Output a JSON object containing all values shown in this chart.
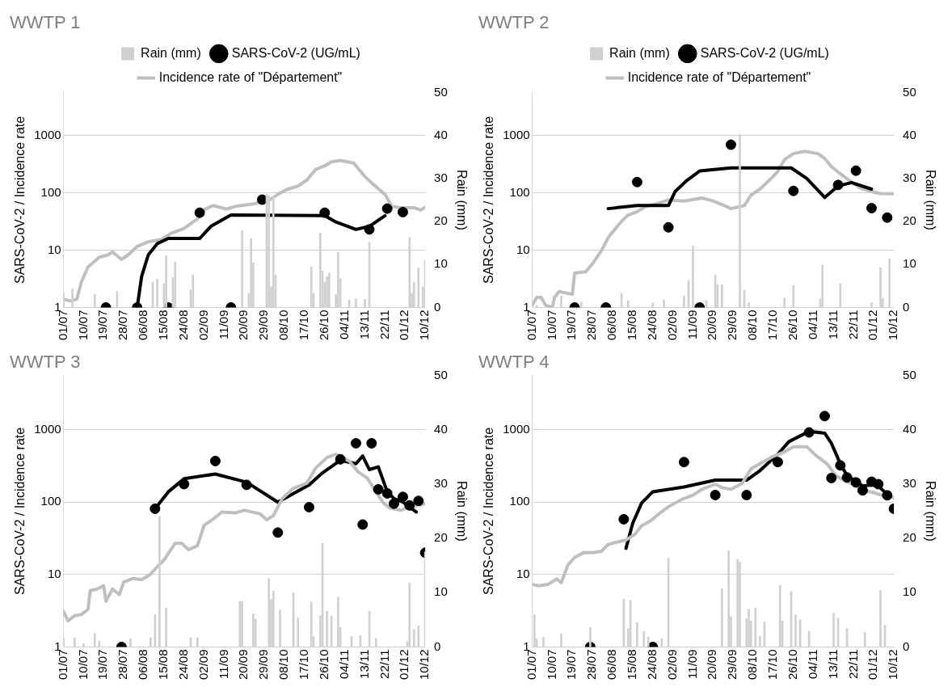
{
  "chart_data": [
    {
      "type": "line",
      "title": "WWTP 1",
      "ylabel": "SARS-CoV-2 / Incidence rate",
      "y2label": "Rain (mm)",
      "log": "y",
      "grid": "y",
      "legend": "top",
      "xlim": [
        "--07-01",
        "--12-10"
      ],
      "xticks": [
        {
          "value": "--07-01",
          "label": "01/07"
        },
        {
          "value": "--07-10",
          "label": "10/07"
        },
        {
          "value": "--07-19",
          "label": "19/07"
        },
        {
          "value": "--07-28",
          "label": "28/07"
        },
        {
          "value": "--08-06",
          "label": "06/08"
        },
        {
          "value": "--08-15",
          "label": "15/08"
        },
        {
          "value": "--08-24",
          "label": "24/08"
        },
        {
          "value": "--09-02",
          "label": "02/09"
        },
        {
          "value": "--09-11",
          "label": "11/09"
        },
        {
          "value": "--09-20",
          "label": "20/09"
        },
        {
          "value": "--09-29",
          "label": "29/09"
        },
        {
          "value": "--10-08",
          "label": "08/10"
        },
        {
          "value": "--10-17",
          "label": "17/10"
        },
        {
          "value": "--10-26",
          "label": "26/10"
        },
        {
          "value": "--11-04",
          "label": "04/11"
        },
        {
          "value": "--11-13",
          "label": "13/11"
        },
        {
          "value": "--11-22",
          "label": "22/11"
        },
        {
          "value": "--12-01",
          "label": "01/12"
        },
        {
          "value": "--12-10",
          "label": "10/12"
        }
      ],
      "ylim": [
        1,
        5623
      ],
      "yticks": [
        1,
        10,
        100,
        1000
      ],
      "y2lim": [
        0,
        50
      ],
      "y2ticks": [
        0,
        10,
        20,
        30,
        40,
        50
      ],
      "series": [
        {
          "name": "Rain (mm)",
          "type": "bar",
          "axis": "y2",
          "color": "#d0d0d0",
          "x": [
            "--07-01",
            "--07-05",
            "--07-15",
            "--07-25",
            "--08-10",
            "--08-12",
            "--08-15",
            "--08-16",
            "--08-19",
            "--08-20",
            "--08-27",
            "--08-28",
            "--09-19",
            "--09-22",
            "--09-23",
            "--09-24",
            "--09-30",
            "--10-01",
            "--10-02",
            "--10-03",
            "--10-04",
            "--10-20",
            "--10-21",
            "--10-24",
            "--10-25",
            "--10-26",
            "--10-27",
            "--10-28",
            "--10-31",
            "--11-01",
            "--11-02",
            "--11-06",
            "--11-09",
            "--11-13",
            "--11-15",
            "--12-03",
            "--12-04",
            "--12-05",
            "--12-07",
            "--12-09",
            "--12-10"
          ],
          "values": [
            3.4,
            4.3,
            3,
            3.7,
            5.9,
            6.6,
            5.5,
            12,
            7,
            10.6,
            4.1,
            7.6,
            17.9,
            3.3,
            16,
            10.4,
            26.4,
            26,
            4.8,
            26,
            7.6,
            9.4,
            3.3,
            17.3,
            8.5,
            5.9,
            7.2,
            8,
            3,
            12.8,
            6.7,
            1.7,
            2,
            1.9,
            15.2,
            16.3,
            3.3,
            5.9,
            9.2,
            4.8,
            10.9
          ]
        },
        {
          "name": "SARS-CoV-2 (UG/mL)",
          "type": "scatter",
          "marker": "circle",
          "color": "#000000",
          "x": [
            "--07-20",
            "--08-03",
            "--08-17",
            "--08-31",
            "--09-14",
            "--09-28",
            "--10-26",
            "--11-15",
            "--11-23",
            "--11-30"
          ],
          "values": [
            1,
            1,
            1,
            45,
            1,
            76,
            45,
            23,
            53,
            46
          ]
        },
        {
          "name": "Incidence rate of \"Département\"",
          "type": "line",
          "marker": "none",
          "color": "#bfbfbf",
          "x": [
            "--07-01",
            "--07-04",
            "--07-07",
            "--07-09",
            "--07-12",
            "--07-17",
            "--07-21",
            "--07-23",
            "--07-27",
            "--07-30",
            "--08-03",
            "--08-08",
            "--08-14",
            "--08-18",
            "--08-24",
            "--08-28",
            "--08-30",
            "--09-02",
            "--09-06",
            "--09-12",
            "--09-16",
            "--09-24",
            "--10-01",
            "--10-06",
            "--10-09",
            "--10-14",
            "--10-18",
            "--10-22",
            "--10-26",
            "--10-29",
            "--11-02",
            "--11-08",
            "--11-13",
            "--11-17",
            "--11-22",
            "--11-25",
            "--11-29",
            "--12-05",
            "--12-08",
            "--12-10"
          ],
          "values": [
            1.4,
            1.3,
            1.4,
            2.8,
            5.1,
            7.5,
            8.3,
            9.3,
            6.9,
            8.3,
            11.6,
            14,
            15.4,
            19.5,
            24,
            31,
            35,
            51,
            60,
            52,
            58,
            64,
            74,
            99,
            114,
            131,
            167,
            256,
            295,
            347,
            367,
            331,
            192,
            138,
            94,
            58,
            55,
            55,
            50,
            56
          ]
        },
        {
          "type": "line",
          "marker": "none",
          "color": "#000000",
          "x": [
            "--08-03",
            "--08-05",
            "--08-08",
            "--08-12",
            "--08-17",
            "--08-31",
            "--09-05",
            "--09-14",
            "--10-26",
            "--10-31",
            "--11-09",
            "--11-15",
            "--11-22"
          ],
          "values": [
            1,
            3.5,
            8.3,
            13,
            16,
            16,
            26,
            41,
            40,
            31,
            23,
            26,
            40
          ]
        }
      ]
    },
    {
      "type": "line",
      "title": "WWTP 2",
      "ylabel": "SARS-CoV-2 / Incidence rate",
      "y2label": "Rain (mm)",
      "log": "y",
      "grid": "y",
      "legend": "top",
      "xlim": [
        "--07-01",
        "--12-10"
      ],
      "xticks": [
        {
          "value": "--07-01",
          "label": "01/07"
        },
        {
          "value": "--07-10",
          "label": "10/07"
        },
        {
          "value": "--07-19",
          "label": "19/07"
        },
        {
          "value": "--07-28",
          "label": "28/07"
        },
        {
          "value": "--08-06",
          "label": "06/08"
        },
        {
          "value": "--08-15",
          "label": "15/08"
        },
        {
          "value": "--08-24",
          "label": "24/08"
        },
        {
          "value": "--09-02",
          "label": "02/09"
        },
        {
          "value": "--09-11",
          "label": "11/09"
        },
        {
          "value": "--09-20",
          "label": "20/09"
        },
        {
          "value": "--09-29",
          "label": "29/09"
        },
        {
          "value": "--10-08",
          "label": "08/10"
        },
        {
          "value": "--10-17",
          "label": "17/10"
        },
        {
          "value": "--10-26",
          "label": "26/10"
        },
        {
          "value": "--11-04",
          "label": "04/11"
        },
        {
          "value": "--11-13",
          "label": "13/11"
        },
        {
          "value": "--11-22",
          "label": "22/11"
        },
        {
          "value": "--12-01",
          "label": "01/12"
        },
        {
          "value": "--12-10",
          "label": "10/12"
        }
      ],
      "ylim": [
        1,
        5623
      ],
      "yticks": [
        1,
        10,
        100,
        1000
      ],
      "y2lim": [
        0,
        50
      ],
      "y2ticks": [
        0,
        10,
        20,
        30,
        40,
        50
      ],
      "series": [
        {
          "name": "Rain (mm)",
          "type": "bar",
          "axis": "y2",
          "color": "#d0d0d0",
          "x": [
            "--07-03",
            "--07-14",
            "--07-23",
            "--08-10",
            "--08-13",
            "--08-24",
            "--08-29",
            "--09-07",
            "--09-09",
            "--09-11",
            "--09-17",
            "--09-21",
            "--09-22",
            "--09-24",
            "--10-02",
            "--10-04",
            "--10-06",
            "--10-22",
            "--10-26",
            "--11-07",
            "--11-08",
            "--11-16",
            "--11-30",
            "--12-04",
            "--12-05",
            "--12-08"
          ],
          "values": [
            0.5,
            2.7,
            1.3,
            3.3,
            1.6,
            1.1,
            1.8,
            2.7,
            6.3,
            14.3,
            1.6,
            7.5,
            5.4,
            5.3,
            40.3,
            4,
            1.1,
            2.2,
            5.1,
            2,
            9.9,
            5.5,
            1.1,
            9.3,
            2.2,
            11.3
          ]
        },
        {
          "name": "SARS-CoV-2 (UG/mL)",
          "type": "scatter",
          "marker": "circle",
          "color": "#000000",
          "x": [
            "--07-20",
            "--08-03",
            "--08-17",
            "--08-31",
            "--09-14",
            "--09-28",
            "--10-26",
            "--11-15",
            "--11-23",
            "--11-30",
            "--12-07"
          ],
          "values": [
            1,
            1,
            154,
            25,
            1,
            690,
            108,
            137,
            243,
            54,
            37
          ]
        },
        {
          "name": "Incidence rate of \"Département\"",
          "type": "line",
          "marker": "none",
          "color": "#bfbfbf",
          "x": [
            "--07-01",
            "--07-03",
            "--07-05",
            "--07-07",
            "--07-10",
            "--07-11",
            "--07-13",
            "--07-19",
            "--07-20",
            "--07-25",
            "--07-28",
            "--08-01",
            "--08-04",
            "--08-07",
            "--08-10",
            "--08-13",
            "--08-17",
            "--08-21",
            "--08-26",
            "--08-31",
            "--09-07",
            "--09-15",
            "--09-20",
            "--09-25",
            "--09-28",
            "--10-04",
            "--10-07",
            "--10-11",
            "--10-16",
            "--10-19",
            "--10-22",
            "--10-26",
            "--10-31",
            "--11-06",
            "--11-09",
            "--11-12",
            "--11-16",
            "--11-21",
            "--11-25",
            "--11-30",
            "--12-04",
            "--12-10"
          ],
          "values": [
            1.1,
            1.5,
            1.5,
            1.1,
            1,
            1.5,
            1.9,
            1.7,
            4,
            4.2,
            5.8,
            9.8,
            16.5,
            23,
            32,
            41,
            47,
            58,
            65,
            75,
            72,
            81,
            72,
            60,
            53,
            60,
            91,
            116,
            178,
            236,
            380,
            482,
            530,
            482,
            398,
            286,
            215,
            154,
            121,
            105,
            97,
            96
          ]
        },
        {
          "type": "line",
          "marker": "none",
          "color": "#000000",
          "x": [
            "--08-04",
            "--08-17",
            "--08-31",
            "--09-03",
            "--09-08",
            "--09-14",
            "--09-28",
            "--10-25",
            "--11-01",
            "--11-09",
            "--11-15",
            "--11-21",
            "--11-30"
          ],
          "values": [
            53,
            60,
            60,
            105,
            161,
            240,
            272,
            272,
            178,
            83,
            131,
            151,
            116
          ]
        }
      ]
    },
    {
      "type": "line",
      "title": "WWTP 3",
      "ylabel": "SARS-CoV-2 / Incidence rate",
      "y2label": "Rain (mm)",
      "log": "y",
      "grid": "y",
      "xlim": [
        "--07-01",
        "--12-10"
      ],
      "xticks": [
        {
          "value": "--07-01",
          "label": "01/07"
        },
        {
          "value": "--07-10",
          "label": "10/07"
        },
        {
          "value": "--07-19",
          "label": "19/07"
        },
        {
          "value": "--07-28",
          "label": "28/07"
        },
        {
          "value": "--08-06",
          "label": "06/08"
        },
        {
          "value": "--08-15",
          "label": "15/08"
        },
        {
          "value": "--08-24",
          "label": "24/08"
        },
        {
          "value": "--09-02",
          "label": "02/09"
        },
        {
          "value": "--09-11",
          "label": "11/09"
        },
        {
          "value": "--09-20",
          "label": "20/09"
        },
        {
          "value": "--09-29",
          "label": "29/09"
        },
        {
          "value": "--10-08",
          "label": "08/10"
        },
        {
          "value": "--10-17",
          "label": "17/10"
        },
        {
          "value": "--10-26",
          "label": "26/10"
        },
        {
          "value": "--11-04",
          "label": "04/11"
        },
        {
          "value": "--11-13",
          "label": "13/11"
        },
        {
          "value": "--11-22",
          "label": "22/11"
        },
        {
          "value": "--12-01",
          "label": "01/12"
        },
        {
          "value": "--12-10",
          "label": "10/12"
        }
      ],
      "ylim": [
        1,
        5623
      ],
      "yticks": [
        1,
        10,
        100,
        1000
      ],
      "y2lim": [
        0,
        50
      ],
      "y2ticks": [
        0,
        10,
        20,
        30,
        40,
        50
      ],
      "series": [
        {
          "type": "bar",
          "axis": "y2",
          "color": "#d0d0d0",
          "x": [
            "--07-01",
            "--07-06",
            "--07-10",
            "--07-15",
            "--07-17",
            "--07-31",
            "--08-09",
            "--08-11",
            "--08-13",
            "--08-16",
            "--08-27",
            "--08-30",
            "--09-18",
            "--09-19",
            "--09-24",
            "--09-25",
            "--10-01",
            "--10-02",
            "--10-03",
            "--10-06",
            "--10-12",
            "--10-14",
            "--10-20",
            "--10-21",
            "--10-24",
            "--10-25",
            "--10-27",
            "--10-29",
            "--11-01",
            "--11-02",
            "--11-07",
            "--11-11",
            "--11-15",
            "--11-18",
            "--12-02",
            "--12-03",
            "--12-05",
            "--12-07",
            "--12-10"
          ],
          "values": [
            1.7,
            1.7,
            0.6,
            2.5,
            1.1,
            1.5,
            1.7,
            5.9,
            24,
            7.2,
            1.7,
            1.7,
            8.4,
            8.4,
            6.1,
            5.1,
            12.6,
            8.7,
            10.3,
            6.8,
            10,
            5.3,
            8.3,
            1.9,
            5.7,
            19.1,
            6.6,
            5.7,
            9.2,
            3.6,
            1.9,
            2.1,
            6.6,
            1.6,
            1,
            11.8,
            3.2,
            3.9,
            17.5
          ]
        },
        {
          "type": "scatter",
          "marker": "circle",
          "color": "#000000",
          "x": [
            "--07-27",
            "--08-11",
            "--08-24",
            "--09-07",
            "--09-21",
            "--10-05",
            "--10-19",
            "--11-02",
            "--11-09",
            "--11-12",
            "--11-16",
            "--11-19",
            "--11-23",
            "--11-26",
            "--11-30",
            "--12-03",
            "--12-07",
            "--12-10"
          ],
          "values": [
            1,
            81,
            177,
            369,
            173,
            38,
            85,
            390,
            649,
            49,
            649,
            150,
            132,
            95,
            118,
            90,
            104,
            20
          ]
        },
        {
          "type": "line",
          "marker": "none",
          "color": "#bfbfbf",
          "x": [
            "--07-01",
            "--07-03",
            "--07-06",
            "--07-09",
            "--07-12",
            "--07-13",
            "--07-16",
            "--07-19",
            "--07-20",
            "--07-23",
            "--07-26",
            "--07-28",
            "--08-01",
            "--08-05",
            "--08-09",
            "--08-12",
            "--08-15",
            "--08-20",
            "--08-23",
            "--08-26",
            "--08-30",
            "--09-02",
            "--09-06",
            "--09-10",
            "--09-16",
            "--09-20",
            "--09-27",
            "--09-30",
            "--10-03",
            "--10-07",
            "--10-12",
            "--10-18",
            "--10-22",
            "--10-27",
            "--10-31",
            "--11-06",
            "--11-10",
            "--11-14",
            "--11-18",
            "--11-21",
            "--11-24",
            "--11-29",
            "--12-03",
            "--12-10"
          ],
          "values": [
            3.1,
            2.3,
            2.7,
            2.8,
            3.3,
            6,
            6.3,
            7,
            4.3,
            6.3,
            5.3,
            7.9,
            8.8,
            8.5,
            10.1,
            12.8,
            15.9,
            27,
            27,
            22,
            25,
            48,
            58,
            73,
            71,
            77,
            69,
            57,
            65,
            112,
            155,
            182,
            297,
            411,
            458,
            369,
            261,
            215,
            139,
            100,
            83,
            77,
            85,
            95
          ]
        },
        {
          "type": "line",
          "marker": "none",
          "color": "#000000",
          "x": [
            "--08-11",
            "--08-17",
            "--08-24",
            "--09-07",
            "--09-21",
            "--10-05",
            "--10-19",
            "--10-25",
            "--11-02",
            "--11-09",
            "--11-12",
            "--11-15",
            "--11-19",
            "--11-23",
            "--11-26",
            "--11-30",
            "--12-06"
          ],
          "values": [
            81,
            139,
            210,
            244,
            188,
            100,
            173,
            253,
            377,
            338,
            434,
            281,
            307,
            139,
            112,
            100,
            73
          ]
        }
      ]
    },
    {
      "type": "line",
      "title": "WWTP 4",
      "ylabel": "SARS-CoV-2 / Incidence rate",
      "y2label": "Rain (mm)",
      "log": "y",
      "grid": "y",
      "xlim": [
        "--07-01",
        "--12-10"
      ],
      "xticks": [
        {
          "value": "--07-01",
          "label": "01/07"
        },
        {
          "value": "--07-10",
          "label": "10/07"
        },
        {
          "value": "--07-19",
          "label": "19/07"
        },
        {
          "value": "--07-28",
          "label": "28/07"
        },
        {
          "value": "--08-06",
          "label": "06/08"
        },
        {
          "value": "--08-15",
          "label": "15/08"
        },
        {
          "value": "--08-24",
          "label": "24/08"
        },
        {
          "value": "--09-02",
          "label": "02/09"
        },
        {
          "value": "--09-11",
          "label": "11/09"
        },
        {
          "value": "--09-20",
          "label": "20/09"
        },
        {
          "value": "--09-29",
          "label": "29/09"
        },
        {
          "value": "--10-08",
          "label": "08/10"
        },
        {
          "value": "--10-17",
          "label": "17/10"
        },
        {
          "value": "--10-26",
          "label": "26/10"
        },
        {
          "value": "--11-04",
          "label": "04/11"
        },
        {
          "value": "--11-13",
          "label": "13/11"
        },
        {
          "value": "--11-22",
          "label": "22/11"
        },
        {
          "value": "--12-01",
          "label": "01/12"
        },
        {
          "value": "--12-10",
          "label": "10/12"
        }
      ],
      "ylim": [
        1,
        5623
      ],
      "yticks": [
        1,
        10,
        100,
        1000
      ],
      "y2lim": [
        0,
        50
      ],
      "y2ticks": [
        0,
        10,
        20,
        30,
        40,
        50
      ],
      "series": [
        {
          "type": "bar",
          "axis": "y2",
          "color": "#d0d0d0",
          "x": [
            "--07-02",
            "--07-03",
            "--07-06",
            "--07-14",
            "--07-27",
            "--08-11",
            "--08-13",
            "--08-14",
            "--08-17",
            "--08-20",
            "--08-22",
            "--08-28",
            "--08-31",
            "--09-24",
            "--09-27",
            "--09-28",
            "--10-01",
            "--10-02",
            "--10-05",
            "--10-06",
            "--10-07",
            "--10-09",
            "--10-11",
            "--10-13",
            "--10-20",
            "--10-21",
            "--10-25",
            "--10-27",
            "--10-29",
            "--11-02",
            "--11-13",
            "--11-15",
            "--11-19",
            "--11-27",
            "--12-04",
            "--12-06"
          ],
          "values": [
            5.9,
            1.5,
            1.8,
            2.4,
            3.6,
            8.8,
            3.4,
            8.6,
            4.5,
            2.9,
            1.8,
            1.5,
            16.3,
            10.7,
            17.7,
            5.6,
            16.1,
            15.6,
            5.2,
            7,
            4.8,
            7.2,
            2,
            4.6,
            11.3,
            4.8,
            10.2,
            5.9,
            5,
            2.9,
            6.2,
            5.3,
            3.4,
            2.7,
            10.4,
            4
          ]
        },
        {
          "type": "scatter",
          "marker": "circle",
          "color": "#000000",
          "x": [
            "--07-27",
            "--08-11",
            "--08-24",
            "--09-07",
            "--09-21",
            "--10-05",
            "--10-19",
            "--11-02",
            "--11-09",
            "--11-12",
            "--11-16",
            "--11-19",
            "--11-23",
            "--11-26",
            "--11-30",
            "--12-03",
            "--12-07",
            "--12-10"
          ],
          "values": [
            1,
            58,
            1,
            357,
            125,
            125,
            357,
            916,
            1540,
            215,
            321,
            219,
            187,
            145,
            191,
            177,
            124,
            81
          ]
        },
        {
          "type": "line",
          "marker": "none",
          "color": "#bfbfbf",
          "x": [
            "--07-01",
            "--07-04",
            "--07-08",
            "--07-12",
            "--07-14",
            "--07-17",
            "--07-20",
            "--07-24",
            "--07-28",
            "--08-01",
            "--08-04",
            "--08-08",
            "--08-12",
            "--08-16",
            "--08-19",
            "--08-23",
            "--08-27",
            "--08-31",
            "--09-06",
            "--09-11",
            "--09-15",
            "--09-21",
            "--09-24",
            "--09-28",
            "--10-03",
            "--10-07",
            "--10-11",
            "--10-17",
            "--10-22",
            "--10-26",
            "--11-01",
            "--11-05",
            "--11-10",
            "--11-14",
            "--11-18",
            "--11-22",
            "--11-27",
            "--12-01",
            "--12-06",
            "--12-10"
          ],
          "values": [
            7.3,
            7,
            7.3,
            8.7,
            7.7,
            13.6,
            17.2,
            20,
            20,
            21,
            26,
            28,
            30,
            36,
            47,
            55,
            70,
            86,
            109,
            125,
            150,
            177,
            159,
            150,
            181,
            288,
            338,
            429,
            494,
            581,
            581,
            443,
            338,
            232,
            197,
            173,
            145,
            135,
            121,
            115
          ]
        },
        {
          "type": "line",
          "marker": "none",
          "color": "#000000",
          "x": [
            "--08-12",
            "--08-15",
            "--08-19",
            "--08-24",
            "--09-07",
            "--09-21",
            "--10-05",
            "--10-11",
            "--10-19",
            "--10-24",
            "--11-02",
            "--11-09",
            "--11-12",
            "--11-16",
            "--11-19",
            "--11-23",
            "--11-26",
            "--11-30",
            "--12-03",
            "--12-07"
          ],
          "values": [
            23,
            51,
            97,
            139,
            162,
            201,
            201,
            272,
            458,
            684,
            946,
            896,
            648,
            338,
            232,
            193,
            167,
            173,
            167,
            128
          ]
        }
      ]
    }
  ]
}
